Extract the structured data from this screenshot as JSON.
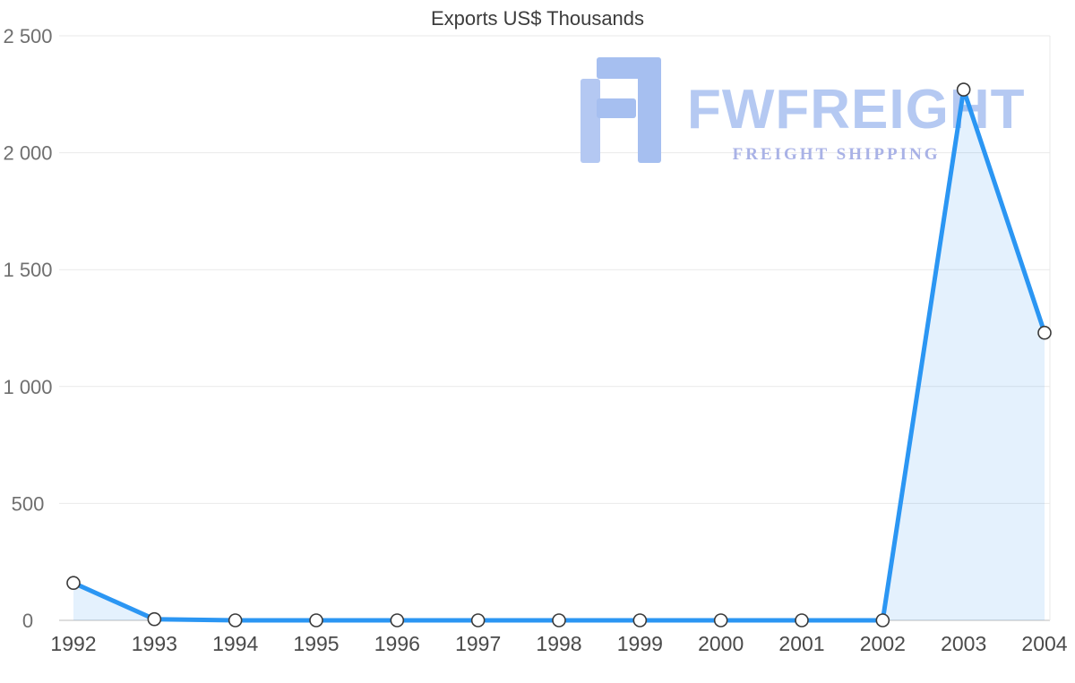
{
  "chart_data": {
    "type": "area",
    "title": "Exports US$ Thousands",
    "categories": [
      "1992",
      "1993",
      "1994",
      "1995",
      "1996",
      "1997",
      "1998",
      "1999",
      "2000",
      "2001",
      "2002",
      "2003",
      "2004"
    ],
    "values": [
      160,
      5,
      0,
      0,
      0,
      0,
      0,
      0,
      0,
      0,
      0,
      2270,
      1230
    ],
    "xlabel": "",
    "ylabel": "",
    "ylim": [
      0,
      2500
    ],
    "y_ticks": [
      0,
      500,
      1000,
      1500,
      2000,
      2500
    ],
    "y_tick_labels": [
      "0",
      "500",
      "1 000",
      "1 500",
      "2 000",
      "2 500"
    ],
    "grid": true,
    "legend": "none",
    "line_color": "#2b96f3",
    "fill_color": "rgba(43,150,243,0.13)",
    "marker_fill": "#ffffff",
    "marker_stroke": "#3a3a3a",
    "grid_color": "#e9e9e9",
    "axis_line_color": "#bcbcbc",
    "y_label_color": "#6f6f6f",
    "x_label_color": "#4a4a4a"
  },
  "watermark": {
    "brand": "FWFREIGHT",
    "tagline": "FREIGHT SHIPPING",
    "brand_color": "#b5c9f2",
    "tagline_color": "#a9b2e6",
    "logo_color": "#a6bff0"
  }
}
